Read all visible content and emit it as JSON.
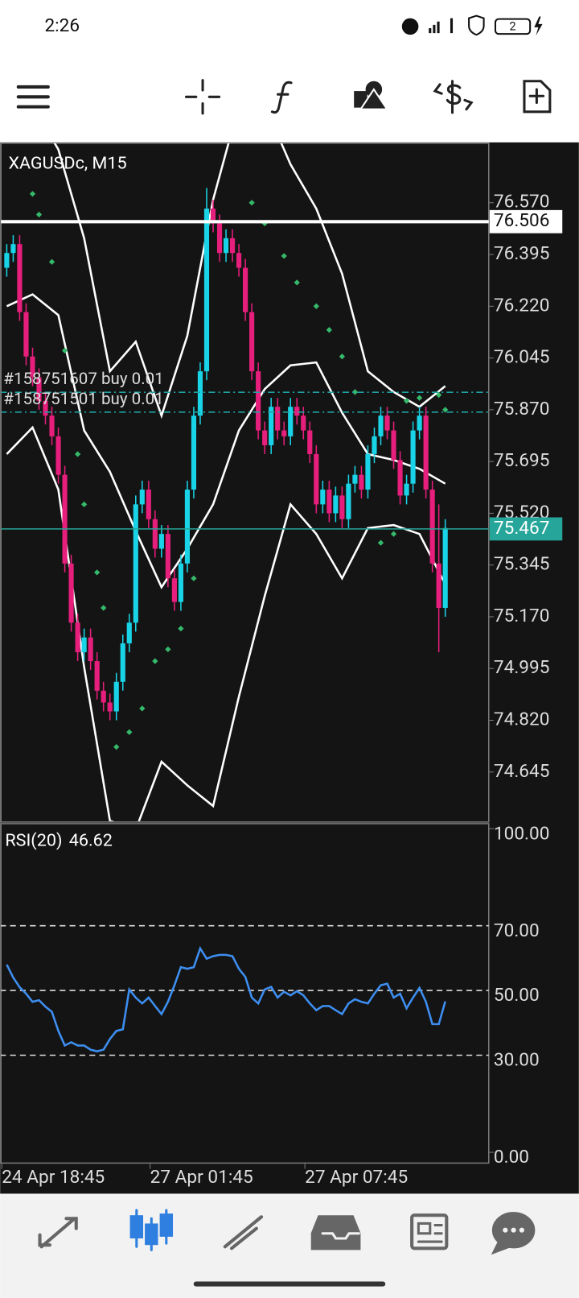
{
  "status_bar": {
    "time": "2:26",
    "battery": "2"
  },
  "chart": {
    "symbol": "XAGUSDc, M15",
    "ylim": [
      74.476,
      76.774
    ],
    "yticks": [
      {
        "value": 76.57,
        "label": "76.570"
      },
      {
        "value": 76.395,
        "label": "76.395"
      },
      {
        "value": 76.22,
        "label": "76.220"
      },
      {
        "value": 76.045,
        "label": "76.045"
      },
      {
        "value": 75.87,
        "label": "75.870"
      },
      {
        "value": 75.695,
        "label": "75.695"
      },
      {
        "value": 75.52,
        "label": "75.520"
      },
      {
        "value": 75.345,
        "label": "75.345"
      },
      {
        "value": 75.17,
        "label": "75.170"
      },
      {
        "value": 74.995,
        "label": "74.995"
      },
      {
        "value": 74.82,
        "label": "74.820"
      },
      {
        "value": 74.645,
        "label": "74.645"
      }
    ],
    "bull_color": "#19d3e6",
    "bear_color": "#e61e7c",
    "candles": {
      "open": [
        76.35,
        76.4,
        76.43,
        76.2,
        76.05,
        75.98,
        75.9,
        75.85,
        75.78,
        75.65,
        75.35,
        75.15,
        75.05,
        75.1,
        75.02,
        74.92,
        74.88,
        74.85,
        74.95,
        75.08,
        75.15,
        75.55,
        75.6,
        75.5,
        75.4,
        75.45,
        75.3,
        75.22,
        75.35,
        75.6,
        75.85,
        76.0,
        76.55,
        76.5,
        76.4,
        76.45,
        76.4,
        76.35,
        76.2,
        76.0,
        75.8,
        75.75,
        75.88,
        75.8,
        75.78,
        75.88,
        75.85,
        75.8,
        75.72,
        75.55,
        75.6,
        75.52,
        75.58,
        75.5,
        75.62,
        75.65,
        75.6,
        75.72,
        75.78,
        75.85,
        75.8,
        75.7,
        75.58,
        75.62,
        75.8,
        75.85,
        75.6,
        75.35,
        75.2
      ],
      "high": [
        76.43,
        76.46,
        76.46,
        76.23,
        76.08,
        76.01,
        75.93,
        75.88,
        75.81,
        75.68,
        75.38,
        75.18,
        75.13,
        75.13,
        75.05,
        74.95,
        74.91,
        74.98,
        75.11,
        75.18,
        75.58,
        75.63,
        75.63,
        75.53,
        75.48,
        75.48,
        75.33,
        75.38,
        75.63,
        75.88,
        76.03,
        76.62,
        76.58,
        76.53,
        76.48,
        76.48,
        76.43,
        76.38,
        76.23,
        76.03,
        75.83,
        75.91,
        75.91,
        75.83,
        75.91,
        75.91,
        75.88,
        75.83,
        75.75,
        75.63,
        75.63,
        75.61,
        75.61,
        75.65,
        75.68,
        75.68,
        75.75,
        75.81,
        75.88,
        75.88,
        75.83,
        75.73,
        75.65,
        75.83,
        75.88,
        75.88,
        75.63,
        75.55,
        75.5
      ],
      "low": [
        76.32,
        76.37,
        76.17,
        76.02,
        75.95,
        75.87,
        75.82,
        75.75,
        75.62,
        75.32,
        75.12,
        75.02,
        75.02,
        74.99,
        74.89,
        74.85,
        74.82,
        74.82,
        74.92,
        75.05,
        75.12,
        75.52,
        75.47,
        75.37,
        75.37,
        75.27,
        75.19,
        75.19,
        75.32,
        75.57,
        75.82,
        75.97,
        76.47,
        76.37,
        76.37,
        76.37,
        76.32,
        76.17,
        75.97,
        75.77,
        75.72,
        75.72,
        75.77,
        75.75,
        75.75,
        75.82,
        75.77,
        75.69,
        75.52,
        75.52,
        75.49,
        75.49,
        75.47,
        75.47,
        75.59,
        75.57,
        75.57,
        75.69,
        75.75,
        75.77,
        75.67,
        75.55,
        75.55,
        75.59,
        75.77,
        75.57,
        75.32,
        75.05,
        75.17
      ],
      "close": [
        76.4,
        76.43,
        76.2,
        76.05,
        75.98,
        75.9,
        75.85,
        75.78,
        75.65,
        75.35,
        75.15,
        75.05,
        75.1,
        75.02,
        74.92,
        74.88,
        74.85,
        74.95,
        75.08,
        75.15,
        75.55,
        75.6,
        75.5,
        75.4,
        75.45,
        75.3,
        75.22,
        75.35,
        75.6,
        75.85,
        76.0,
        76.55,
        76.5,
        76.4,
        76.45,
        76.4,
        76.35,
        76.2,
        76.0,
        75.8,
        75.75,
        75.88,
        75.8,
        75.78,
        75.88,
        75.85,
        75.8,
        75.72,
        75.55,
        75.6,
        75.52,
        75.58,
        75.5,
        75.62,
        75.65,
        75.6,
        75.72,
        75.78,
        75.85,
        75.8,
        75.7,
        75.58,
        75.62,
        75.8,
        75.85,
        75.6,
        75.35,
        75.2,
        75.47
      ]
    },
    "bollinger": {
      "color": "#ffffff",
      "x": [
        0,
        4,
        8,
        12,
        16,
        20,
        24,
        28,
        32,
        36,
        40,
        44,
        48,
        52,
        56,
        60,
        64,
        68
      ],
      "upper": [
        77.0,
        76.9,
        76.75,
        76.45,
        76.0,
        76.1,
        75.85,
        76.12,
        76.58,
        76.9,
        76.9,
        76.7,
        76.55,
        76.33,
        76.0,
        75.93,
        75.88,
        75.95
      ],
      "middle": [
        76.22,
        76.26,
        76.19,
        75.8,
        75.66,
        75.46,
        75.27,
        75.4,
        75.55,
        75.8,
        75.94,
        76.02,
        76.03,
        75.86,
        75.72,
        75.7,
        75.67,
        75.62
      ],
      "lower": [
        75.72,
        75.81,
        75.6,
        75.0,
        74.48,
        74.45,
        74.68,
        74.6,
        74.53,
        74.9,
        75.24,
        75.55,
        75.45,
        75.3,
        75.47,
        75.48,
        75.45,
        75.28
      ]
    },
    "sar": {
      "color": "#35b96a",
      "x": [
        4,
        5,
        7,
        9,
        11,
        12,
        14,
        15,
        17,
        19,
        21,
        23,
        25,
        27,
        29,
        38,
        40,
        43,
        45,
        48,
        50,
        52,
        54,
        58,
        60,
        62,
        64,
        67,
        68
      ],
      "values": [
        76.6,
        76.53,
        76.37,
        76.07,
        75.72,
        75.55,
        75.32,
        75.2,
        74.73,
        74.78,
        74.86,
        75.02,
        75.06,
        75.13,
        75.3,
        76.57,
        76.5,
        76.39,
        76.3,
        76.22,
        76.14,
        76.05,
        75.93,
        75.42,
        75.45,
        75.9,
        75.91,
        75.92,
        75.87
      ]
    },
    "price_lines": [
      {
        "value": 76.506,
        "label": "76.506",
        "color": "#ffffff"
      },
      {
        "value": 75.467,
        "label": "75.467",
        "color": "#26a69a"
      }
    ],
    "orders": [
      {
        "value": 75.929,
        "label": "#158751607 buy 0.01",
        "color": "#1fa3a3"
      },
      {
        "value": 75.862,
        "label": "#158751501 buy 0.01",
        "color": "#1fa3a3"
      }
    ]
  },
  "rsi": {
    "label": "RSI(20)",
    "color": "#3d8ef0",
    "ylim": [
      0,
      100
    ],
    "yticks": [
      {
        "value": 100,
        "label": "100.00"
      },
      {
        "value": 70,
        "label": "70.00"
      },
      {
        "value": 50,
        "label": "50.00"
      },
      {
        "value": 30,
        "label": "30.00"
      },
      {
        "value": 0,
        "label": "0.00"
      }
    ],
    "values": [
      58,
      54,
      51,
      49,
      46.5,
      47,
      45,
      43.4,
      37.5,
      33,
      34,
      33,
      33,
      31.7,
      31.2,
      31.7,
      35,
      37.5,
      38,
      50.3,
      47.8,
      46,
      47.8,
      45.2,
      42.7,
      46.5,
      51.6,
      57.2,
      56.7,
      57.2,
      63,
      59.8,
      60.6,
      61,
      61,
      60.6,
      56.7,
      54.2,
      47.8,
      46,
      50.3,
      51.1,
      47.8,
      49.6,
      48.5,
      49.8,
      48.5,
      46,
      43.9,
      45.2,
      45.2,
      43.9,
      42.7,
      46,
      47.3,
      46.5,
      46,
      49,
      51.6,
      52.1,
      47.8,
      49,
      44.5,
      47.8,
      50.8,
      46.5,
      39.6,
      39.6,
      46.62
    ]
  },
  "time_axis": [
    {
      "index": 0,
      "label": "24 Apr 18:45"
    },
    {
      "index": 23,
      "label": "27 Apr 01:45"
    },
    {
      "index": 47,
      "label": "27 Apr 07:45"
    }
  ]
}
